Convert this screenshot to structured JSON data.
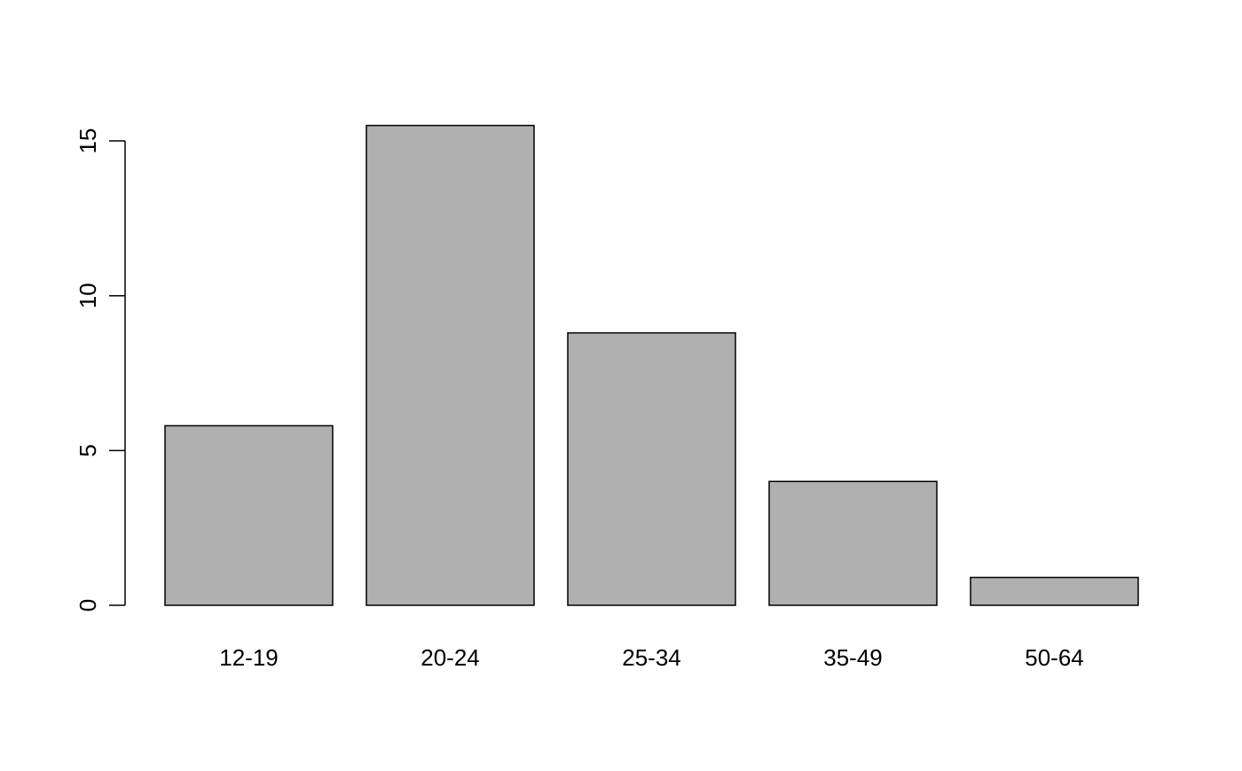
{
  "chart_data": {
    "type": "bar",
    "title": "",
    "xlabel": "",
    "ylabel": "",
    "categories": [
      "12-19",
      "20-24",
      "25-34",
      "35-49",
      "50-64"
    ],
    "values": [
      5.8,
      15.5,
      8.8,
      4.0,
      0.9
    ],
    "ylim": [
      0,
      15
    ],
    "yticks": [
      0,
      5,
      10,
      15
    ],
    "ytick_labels": [
      "0",
      "5",
      "10",
      "15"
    ],
    "bar_color": "#b0b0b0",
    "edge_color": "#000000",
    "grid": false,
    "legend": "none"
  }
}
